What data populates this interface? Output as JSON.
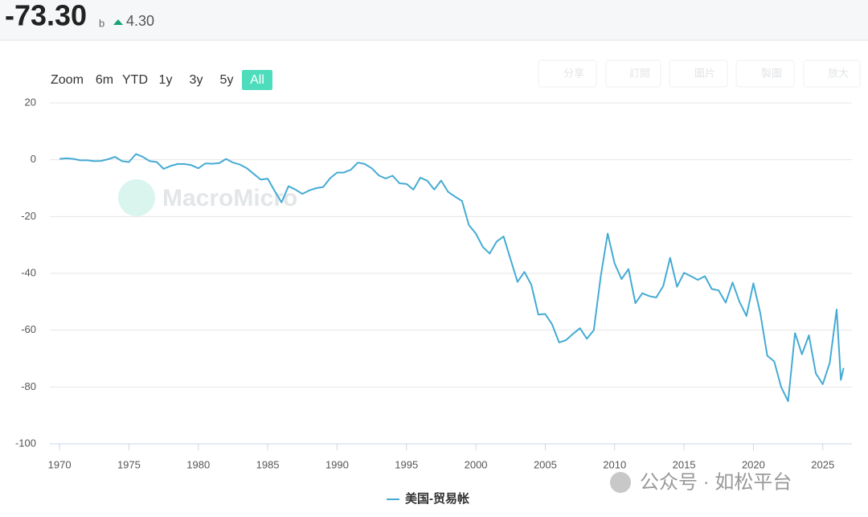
{
  "header": {
    "value": "-73.30",
    "unit": "b",
    "change": "4.30"
  },
  "range_buttons": {
    "label": "Zoom",
    "options": [
      "6m",
      "YTD",
      "1y",
      "3y",
      "5y",
      "All"
    ],
    "selected": 5
  },
  "toolbar": [
    "分享",
    "訂閱",
    "圖片",
    "製圖",
    "放大"
  ],
  "watermark": "MacroMicro",
  "footer_watermark": "公众号 · 如松平台",
  "chart_data": {
    "type": "line",
    "x": [
      1970,
      1970.5,
      1971,
      1971.5,
      1972,
      1972.5,
      1973,
      1973.5,
      1974,
      1974.5,
      1975,
      1975.5,
      1976,
      1976.5,
      1977,
      1977.5,
      1978,
      1978.5,
      1979,
      1979.5,
      1980,
      1980.5,
      1981,
      1981.5,
      1982,
      1982.5,
      1983,
      1983.5,
      1984,
      1984.5,
      1985,
      1985.5,
      1986,
      1986.5,
      1987,
      1987.5,
      1988,
      1988.5,
      1989,
      1989.5,
      1990,
      1990.5,
      1991,
      1991.5,
      1992,
      1992.5,
      1993,
      1993.5,
      1994,
      1994.5,
      1995,
      1995.5,
      1996,
      1996.5,
      1997,
      1997.5,
      1998,
      1998.5,
      1999,
      1999.5,
      2000,
      2000.5,
      2001,
      2001.5,
      2002,
      2002.5,
      2003,
      2003.5,
      2004,
      2004.5,
      2005,
      2005.5,
      2006,
      2006.5,
      2007,
      2007.5,
      2008,
      2008.5,
      2009,
      2009.5,
      2010,
      2010.5,
      2011,
      2011.5,
      2012,
      2012.5,
      2013,
      2013.5,
      2014,
      2014.5,
      2015,
      2015.5,
      2016,
      2016.5,
      2017,
      2017.5,
      2018,
      2018.5,
      2019,
      2019.5,
      2020,
      2020.5,
      2021,
      2021.5,
      2022,
      2022.5,
      2023,
      2023.5,
      2024,
      2024.5,
      2025,
      2025.5,
      2026,
      2026.3,
      2026.5
    ],
    "series": [
      {
        "name": "美国-贸易帐",
        "color": "#45abd4",
        "values": [
          0.3,
          0.5,
          0.3,
          -0.2,
          -0.2,
          -0.5,
          -0.4,
          0.2,
          1,
          -0.5,
          -0.8,
          2,
          1,
          -0.5,
          -0.8,
          -3.2,
          -2.2,
          -1.5,
          -1.5,
          -1.9,
          -3,
          -1.3,
          -1.4,
          -1.2,
          0.3,
          -1,
          -1.7,
          -3,
          -5,
          -7,
          -6.7,
          -11,
          -15,
          -9.3,
          -10.5,
          -12,
          -10.8,
          -10,
          -9.6,
          -6.5,
          -4.5,
          -4.5,
          -3.5,
          -1,
          -1.5,
          -3,
          -5.5,
          -6.6,
          -5.6,
          -8.3,
          -8.5,
          -10.5,
          -6.3,
          -7.4,
          -10.5,
          -7.3,
          -11.3,
          -13,
          -14.5,
          -23,
          -26,
          -30.7,
          -33,
          -28.8,
          -27,
          -35,
          -43,
          -39.5,
          -44,
          -54.5,
          -54.3,
          -58,
          -64.3,
          -63.5,
          -61.3,
          -59.3,
          -63,
          -60,
          -41,
          -26,
          -36.5,
          -42,
          -38.5,
          -50.5,
          -47,
          -48,
          -48.5,
          -44.5,
          -34.5,
          -44.7,
          -39.8,
          -41,
          -42.3,
          -41,
          -45.5,
          -46,
          -50.3,
          -43.2,
          -50,
          -55,
          -43.5,
          -54,
          -69,
          -71,
          -80,
          -85,
          -61,
          -68.5,
          -61.8,
          -75.2,
          -79,
          -71.5,
          -52.7,
          -77.5,
          -73.3
        ]
      }
    ],
    "xlim": [
      1969.3,
      2027.1
    ],
    "xticks": [
      1970,
      1975,
      1980,
      1985,
      1990,
      1995,
      2000,
      2005,
      2010,
      2015,
      2020,
      2025
    ],
    "ylim": [
      -100,
      20
    ],
    "yticks": [
      20,
      0,
      -20,
      -40,
      -60,
      -80,
      -100
    ],
    "grid": true
  }
}
